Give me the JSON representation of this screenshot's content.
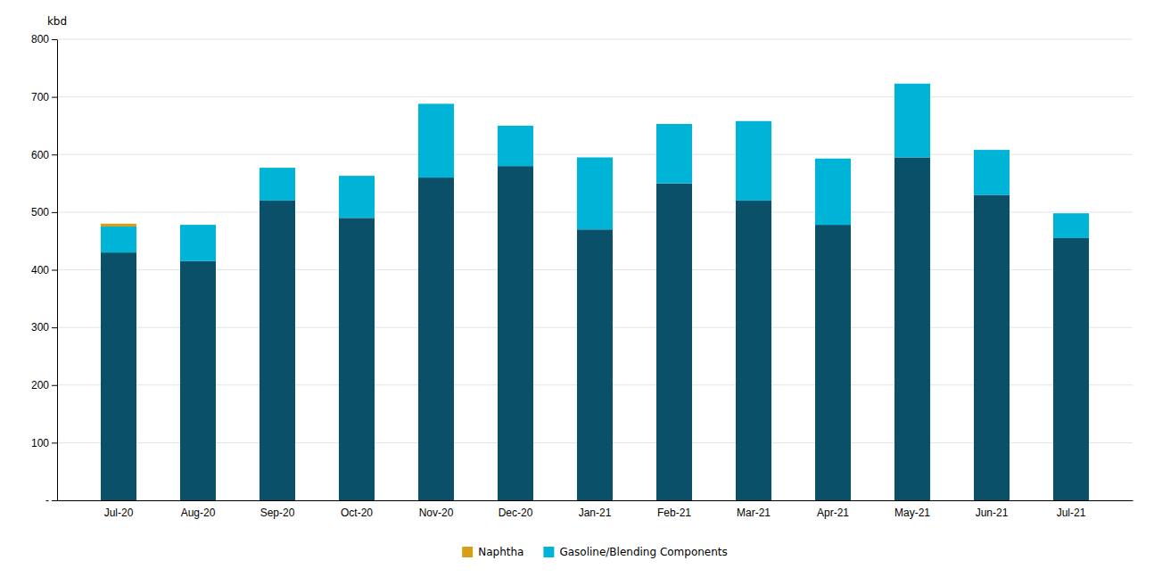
{
  "chart_data": {
    "type": "bar",
    "stacked": true,
    "categories": [
      "Jul-20",
      "Aug-20",
      "Sep-20",
      "Oct-20",
      "Nov-20",
      "Dec-20",
      "Jan-21",
      "Feb-21",
      "Mar-21",
      "Apr-21",
      "May-21",
      "Jun-21",
      "Jul-21"
    ],
    "series": [
      {
        "color": "#0a5068",
        "values": [
          430,
          415,
          520,
          490,
          560,
          580,
          470,
          550,
          520,
          478,
          595,
          530,
          455
        ]
      },
      {
        "name": "Gasoline/Blending Components",
        "color": "#00b4d8",
        "values": [
          45,
          63,
          57,
          73,
          128,
          70,
          125,
          103,
          138,
          115,
          128,
          78,
          43
        ]
      },
      {
        "name": "Naphtha",
        "color": "#d4a017",
        "values": [
          5,
          0,
          0,
          0,
          0,
          0,
          0,
          0,
          0,
          0,
          0,
          0,
          0
        ]
      }
    ],
    "ylabel": "kbd",
    "ylim": [
      0,
      800
    ],
    "yticks": [
      {
        "value": 0,
        "label": "-"
      },
      100,
      200,
      300,
      400,
      500,
      600,
      700,
      800
    ],
    "grid": true,
    "legend": "bottom"
  }
}
